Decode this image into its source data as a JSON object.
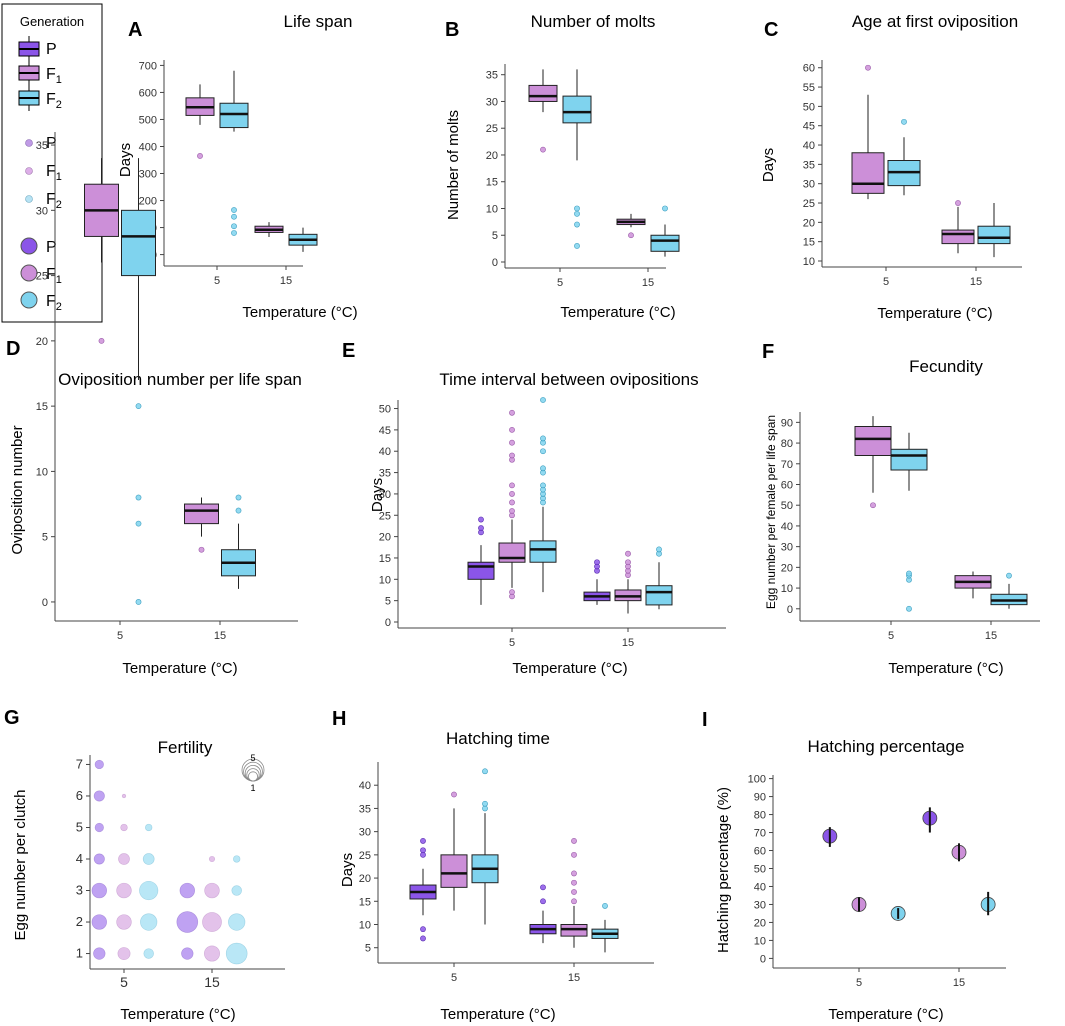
{
  "colors": {
    "P": "#8b55e8",
    "F1": "#cc8fd8",
    "F2": "#7fd3ee",
    "P_pt": "#c09be6",
    "F1_pt": "#ddaee8",
    "F2_pt": "#b7e3f4"
  },
  "legend": {
    "title": "Generation",
    "box_labels": [
      "P",
      "F",
      "F"
    ],
    "box_subs": [
      "",
      "1",
      "2"
    ],
    "point_labels": [
      "P",
      "F",
      "F"
    ],
    "point_subs": [
      "",
      "1",
      "2"
    ],
    "circle_labels": [
      "P",
      "F",
      "F"
    ],
    "circle_subs": [
      "",
      "1",
      "2"
    ]
  },
  "chart_data": [
    {
      "id": "A",
      "letter": "A",
      "type": "box",
      "title": "Life span",
      "xlabel": "Temperature (°C)",
      "ylabel": "Days",
      "ylim": [
        -20,
        720
      ],
      "yticks": [
        0,
        100,
        200,
        300,
        400,
        500,
        600,
        700
      ],
      "categories": [
        "5",
        "15"
      ],
      "boxes": [
        {
          "gen": "F1",
          "cat": 0,
          "offset": -0.5,
          "q1": 515,
          "median": 545,
          "q3": 580,
          "whisker_low": 480,
          "whisker_high": 630,
          "outliers": [
            365
          ]
        },
        {
          "gen": "F2",
          "cat": 0,
          "offset": 0.5,
          "q1": 470,
          "median": 520,
          "q3": 560,
          "whisker_low": 455,
          "whisker_high": 680,
          "outliers": [
            80,
            105,
            140,
            165
          ]
        },
        {
          "gen": "F1",
          "cat": 1,
          "offset": -0.5,
          "q1": 82,
          "median": 92,
          "q3": 105,
          "whisker_low": 65,
          "whisker_high": 120,
          "outliers": []
        },
        {
          "gen": "F2",
          "cat": 1,
          "offset": 0.5,
          "q1": 35,
          "median": 55,
          "q3": 75,
          "whisker_low": 10,
          "whisker_high": 100,
          "outliers": []
        }
      ]
    },
    {
      "id": "B",
      "letter": "B",
      "type": "box",
      "title": "Number of molts",
      "xlabel": "Temperature (°C)",
      "ylabel": "Number of molts",
      "ylim": [
        0,
        37
      ],
      "yticks": [
        0,
        5,
        10,
        15,
        20,
        25,
        30,
        35
      ],
      "categories": [
        "5",
        "15"
      ],
      "boxes": [
        {
          "gen": "F1",
          "cat": 0,
          "offset": -0.5,
          "q1": 30,
          "median": 31,
          "q3": 33,
          "whisker_low": 28,
          "whisker_high": 36,
          "outliers": [
            21
          ]
        },
        {
          "gen": "F2",
          "cat": 0,
          "offset": 0.5,
          "q1": 26,
          "median": 28,
          "q3": 31,
          "whisker_low": 19,
          "whisker_high": 36,
          "outliers": [
            3,
            7,
            9,
            10
          ]
        },
        {
          "gen": "F1",
          "cat": 1,
          "offset": -0.5,
          "q1": 7,
          "median": 7.5,
          "q3": 8,
          "whisker_low": 6.5,
          "whisker_high": 9,
          "outliers": [
            5
          ]
        },
        {
          "gen": "F2",
          "cat": 1,
          "offset": 0.5,
          "q1": 2,
          "median": 4,
          "q3": 5,
          "whisker_low": 1,
          "whisker_high": 7,
          "outliers": [
            10
          ]
        }
      ]
    },
    {
      "id": "C",
      "letter": "C",
      "type": "box",
      "title": "Age at first oviposition",
      "xlabel": "Temperature (°C)",
      "ylabel": "Days",
      "ylim": [
        10,
        62
      ],
      "yticks": [
        10,
        15,
        20,
        25,
        30,
        35,
        40,
        45,
        50,
        55,
        60
      ],
      "categories": [
        "5",
        "15"
      ],
      "boxes": [
        {
          "gen": "F1",
          "cat": 0,
          "offset": -0.5,
          "q1": 27.5,
          "median": 30,
          "q3": 38,
          "whisker_low": 26,
          "whisker_high": 53,
          "outliers": [
            60
          ]
        },
        {
          "gen": "F2",
          "cat": 0,
          "offset": 0.5,
          "q1": 29.5,
          "median": 33,
          "q3": 36,
          "whisker_low": 27,
          "whisker_high": 42,
          "outliers": [
            46
          ]
        },
        {
          "gen": "F1",
          "cat": 1,
          "offset": -0.5,
          "q1": 14.5,
          "median": 17,
          "q3": 18,
          "whisker_low": 12,
          "whisker_high": 24,
          "outliers": [
            25
          ]
        },
        {
          "gen": "F2",
          "cat": 1,
          "offset": 0.5,
          "q1": 14.5,
          "median": 16,
          "q3": 19,
          "whisker_low": 11,
          "whisker_high": 25,
          "outliers": []
        }
      ]
    },
    {
      "id": "D",
      "letter": "D",
      "type": "box",
      "title": "Oviposition number per life span",
      "xlabel": "Temperature (°C)",
      "ylabel": "Oviposition number",
      "ylim": [
        -1,
        36
      ],
      "yticks": [
        0,
        5,
        10,
        15,
        20,
        25,
        30,
        35
      ],
      "categories": [
        "5",
        "15"
      ],
      "boxes": [
        {
          "gen": "F1",
          "cat": 0,
          "offset": -0.5,
          "q1": 28,
          "median": 30,
          "q3": 32,
          "whisker_low": 26,
          "whisker_high": 34,
          "outliers": [
            20
          ]
        },
        {
          "gen": "F2",
          "cat": 0,
          "offset": 0.5,
          "q1": 25,
          "median": 28,
          "q3": 30,
          "whisker_low": 17,
          "whisker_high": 34,
          "outliers": [
            0,
            6,
            8,
            15
          ]
        },
        {
          "gen": "F1",
          "cat": 1,
          "offset": -0.5,
          "q1": 6,
          "median": 7,
          "q3": 7.5,
          "whisker_low": 5,
          "whisker_high": 8,
          "outliers": [
            4
          ]
        },
        {
          "gen": "F2",
          "cat": 1,
          "offset": 0.5,
          "q1": 2,
          "median": 3,
          "q3": 4,
          "whisker_low": 1,
          "whisker_high": 6,
          "outliers": [
            7,
            8
          ]
        }
      ]
    },
    {
      "id": "E",
      "letter": "E",
      "type": "box",
      "title": "Time interval between ovipositions",
      "xlabel": "Temperature (°C)",
      "ylabel": "Days",
      "ylim": [
        0,
        52
      ],
      "yticks": [
        0,
        5,
        10,
        15,
        20,
        25,
        30,
        35,
        40,
        45,
        50
      ],
      "categories": [
        "5",
        "15"
      ],
      "boxes": [
        {
          "gen": "P",
          "cat": 0,
          "offset": -1,
          "q1": 10,
          "median": 13,
          "q3": 14,
          "whisker_low": 4,
          "whisker_high": 18,
          "outliers": [
            21,
            22,
            24
          ]
        },
        {
          "gen": "F1",
          "cat": 0,
          "offset": 0,
          "q1": 14,
          "median": 15,
          "q3": 18.5,
          "whisker_low": 8,
          "whisker_high": 24,
          "outliers": [
            6,
            7,
            25,
            26,
            28,
            30,
            32,
            38,
            39,
            42,
            45,
            49
          ]
        },
        {
          "gen": "F2",
          "cat": 0,
          "offset": 1,
          "q1": 14,
          "median": 17,
          "q3": 19,
          "whisker_low": 7,
          "whisker_high": 27,
          "outliers": [
            28,
            29,
            30,
            31,
            32,
            35,
            36,
            40,
            42,
            43,
            52
          ]
        },
        {
          "gen": "P",
          "cat": 1,
          "offset": -1,
          "q1": 5,
          "median": 6,
          "q3": 7,
          "whisker_low": 4,
          "whisker_high": 10,
          "outliers": [
            12,
            13,
            14
          ]
        },
        {
          "gen": "F1",
          "cat": 1,
          "offset": 0,
          "q1": 5,
          "median": 6,
          "q3": 7.5,
          "whisker_low": 2,
          "whisker_high": 10,
          "outliers": [
            11,
            12,
            13,
            14,
            16
          ]
        },
        {
          "gen": "F2",
          "cat": 1,
          "offset": 1,
          "q1": 4,
          "median": 7,
          "q3": 8.5,
          "whisker_low": 3,
          "whisker_high": 14,
          "outliers": [
            16,
            17
          ]
        }
      ]
    },
    {
      "id": "F",
      "letter": "F",
      "type": "box",
      "title": "Fecundity",
      "xlabel": "Temperature (°C)",
      "ylabel": "Egg number per female per life span",
      "ylim": [
        -3,
        95
      ],
      "yticks": [
        0,
        10,
        20,
        30,
        40,
        50,
        60,
        70,
        80,
        90
      ],
      "categories": [
        "5",
        "15"
      ],
      "boxes": [
        {
          "gen": "F1",
          "cat": 0,
          "offset": -0.5,
          "q1": 74,
          "median": 82,
          "q3": 88,
          "whisker_low": 56,
          "whisker_high": 93,
          "outliers": [
            50
          ]
        },
        {
          "gen": "F2",
          "cat": 0,
          "offset": 0.5,
          "q1": 67,
          "median": 74,
          "q3": 77,
          "whisker_low": 57,
          "whisker_high": 85,
          "outliers": [
            0,
            14,
            16,
            17
          ]
        },
        {
          "gen": "F1",
          "cat": 1,
          "offset": -0.5,
          "q1": 10,
          "median": 13,
          "q3": 16,
          "whisker_low": 5,
          "whisker_high": 18,
          "outliers": []
        },
        {
          "gen": "F2",
          "cat": 1,
          "offset": 0.5,
          "q1": 2,
          "median": 4,
          "q3": 7,
          "whisker_low": 0,
          "whisker_high": 12,
          "outliers": [
            16
          ]
        }
      ]
    },
    {
      "id": "G",
      "letter": "G",
      "type": "bubble",
      "title": "Fertility",
      "xlabel": "Temperature (°C)",
      "ylabel": "Egg number per clutch",
      "ylim": [
        0.7,
        7.3
      ],
      "yticks": [
        1,
        2,
        3,
        4,
        5,
        6,
        7
      ],
      "categories": [
        "5",
        "15"
      ],
      "size_legend": {
        "labels": [
          "5",
          "1"
        ],
        "sizes": [
          5,
          4,
          3,
          2,
          1
        ]
      },
      "points": [
        {
          "gen": "P",
          "cat": 0,
          "y": 7,
          "size": 1
        },
        {
          "gen": "P",
          "cat": 0,
          "y": 6,
          "size": 1.3
        },
        {
          "gen": "P",
          "cat": 0,
          "y": 5,
          "size": 1
        },
        {
          "gen": "P",
          "cat": 0,
          "y": 4,
          "size": 1.3
        },
        {
          "gen": "P",
          "cat": 0,
          "y": 3,
          "size": 2
        },
        {
          "gen": "P",
          "cat": 0,
          "y": 2,
          "size": 2
        },
        {
          "gen": "P",
          "cat": 0,
          "y": 1,
          "size": 1.5
        },
        {
          "gen": "F1",
          "cat": 0,
          "y": 6,
          "size": 0.2
        },
        {
          "gen": "F1",
          "cat": 0,
          "y": 5,
          "size": 0.7
        },
        {
          "gen": "F1",
          "cat": 0,
          "y": 4,
          "size": 1.4
        },
        {
          "gen": "F1",
          "cat": 0,
          "y": 3,
          "size": 2
        },
        {
          "gen": "F1",
          "cat": 0,
          "y": 2,
          "size": 2
        },
        {
          "gen": "F1",
          "cat": 0,
          "y": 1,
          "size": 1.6
        },
        {
          "gen": "F2",
          "cat": 0,
          "y": 5,
          "size": 0.7
        },
        {
          "gen": "F2",
          "cat": 0,
          "y": 4,
          "size": 1.4
        },
        {
          "gen": "F2",
          "cat": 0,
          "y": 3,
          "size": 2.6
        },
        {
          "gen": "F2",
          "cat": 0,
          "y": 2,
          "size": 2.3
        },
        {
          "gen": "F2",
          "cat": 0,
          "y": 1,
          "size": 1.2
        },
        {
          "gen": "P",
          "cat": 1,
          "y": 3,
          "size": 2
        },
        {
          "gen": "P",
          "cat": 1,
          "y": 2,
          "size": 3
        },
        {
          "gen": "P",
          "cat": 1,
          "y": 1,
          "size": 1.5
        },
        {
          "gen": "F1",
          "cat": 1,
          "y": 4,
          "size": 0.5
        },
        {
          "gen": "F1",
          "cat": 1,
          "y": 3,
          "size": 2
        },
        {
          "gen": "F1",
          "cat": 1,
          "y": 2,
          "size": 2.7
        },
        {
          "gen": "F1",
          "cat": 1,
          "y": 1,
          "size": 2.1
        },
        {
          "gen": "F2",
          "cat": 1,
          "y": 4,
          "size": 0.7
        },
        {
          "gen": "F2",
          "cat": 1,
          "y": 3,
          "size": 1.2
        },
        {
          "gen": "F2",
          "cat": 1,
          "y": 2,
          "size": 2.3
        },
        {
          "gen": "F2",
          "cat": 1,
          "y": 1,
          "size": 3
        }
      ]
    },
    {
      "id": "H",
      "letter": "H",
      "type": "box",
      "title": "Hatching time",
      "xlabel": "Temperature (°C)",
      "ylabel": "Days",
      "ylim": [
        3,
        45
      ],
      "yticks": [
        5,
        10,
        15,
        20,
        25,
        30,
        35,
        40
      ],
      "categories": [
        "5",
        "15"
      ],
      "boxes": [
        {
          "gen": "P",
          "cat": 0,
          "offset": -1,
          "q1": 15.5,
          "median": 17,
          "q3": 18.5,
          "whisker_low": 12,
          "whisker_high": 22,
          "outliers": [
            7,
            9,
            25,
            26,
            28
          ]
        },
        {
          "gen": "F1",
          "cat": 0,
          "offset": 0,
          "q1": 18,
          "median": 21,
          "q3": 25,
          "whisker_low": 13,
          "whisker_high": 35,
          "outliers": [
            38
          ]
        },
        {
          "gen": "F2",
          "cat": 0,
          "offset": 1,
          "q1": 19,
          "median": 22,
          "q3": 25,
          "whisker_low": 10,
          "whisker_high": 34,
          "outliers": [
            35,
            36,
            43
          ]
        },
        {
          "gen": "P",
          "cat": 1,
          "offset": -1,
          "q1": 8,
          "median": 9,
          "q3": 10,
          "whisker_low": 6,
          "whisker_high": 13,
          "outliers": [
            15,
            18
          ]
        },
        {
          "gen": "F1",
          "cat": 1,
          "offset": 0,
          "q1": 7.5,
          "median": 9,
          "q3": 10,
          "whisker_low": 5,
          "whisker_high": 14,
          "outliers": [
            15,
            17,
            19,
            21,
            25,
            28
          ]
        },
        {
          "gen": "F2",
          "cat": 1,
          "offset": 1,
          "q1": 7,
          "median": 8,
          "q3": 9,
          "whisker_low": 4,
          "whisker_high": 11,
          "outliers": [
            14
          ]
        }
      ]
    },
    {
      "id": "I",
      "letter": "I",
      "type": "pointrange",
      "title": "Hatching percentage",
      "xlabel": "Temperature (°C)",
      "ylabel": "Hatching percentage (%)",
      "ylim": [
        -2,
        102
      ],
      "yticks": [
        0,
        10,
        20,
        30,
        40,
        50,
        60,
        70,
        80,
        90,
        100
      ],
      "categories": [
        "5",
        "15"
      ],
      "points": [
        {
          "gen": "P",
          "cat": 0,
          "offset": -1,
          "y": 68,
          "low": 62,
          "high": 73
        },
        {
          "gen": "F1",
          "cat": 0,
          "offset": 0,
          "y": 30,
          "low": 26,
          "high": 34
        },
        {
          "gen": "F2",
          "cat": 0,
          "offset": 1,
          "y": 25,
          "low": 22,
          "high": 28
        },
        {
          "gen": "P",
          "cat": 1,
          "offset": -1,
          "y": 78,
          "low": 70,
          "high": 84
        },
        {
          "gen": "F1",
          "cat": 1,
          "offset": 0,
          "y": 59,
          "low": 54,
          "high": 64
        },
        {
          "gen": "F2",
          "cat": 1,
          "offset": 1,
          "y": 30,
          "low": 24,
          "high": 37
        }
      ]
    }
  ]
}
